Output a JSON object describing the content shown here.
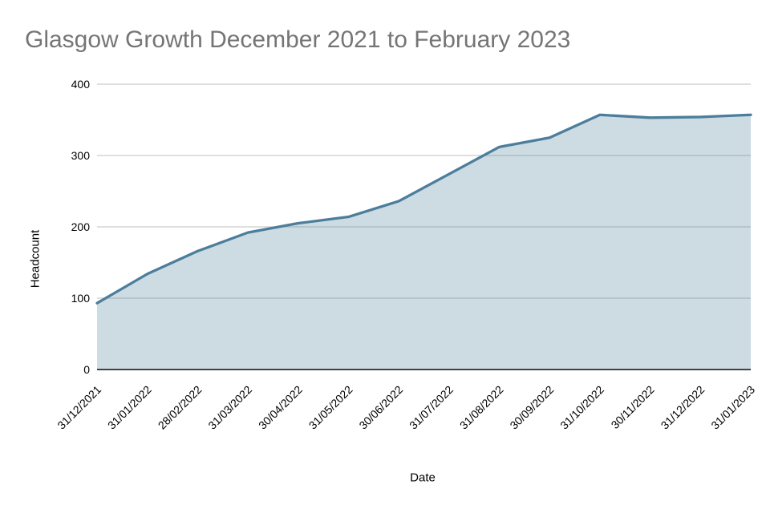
{
  "chart_data": {
    "type": "area",
    "title": "Glasgow Growth December 2021 to February 2023",
    "xlabel": "Date",
    "ylabel": "Headcount",
    "x": [
      "31/12/2021",
      "31/01/2022",
      "28/02/2022",
      "31/03/2022",
      "30/04/2022",
      "31/05/2022",
      "30/06/2022",
      "31/07/2022",
      "31/08/2022",
      "30/09/2022",
      "31/10/2022",
      "30/11/2022",
      "31/12/2022",
      "31/01/2023"
    ],
    "series": [
      {
        "name": "Headcount",
        "values": [
          93,
          134,
          166,
          192,
          205,
          214,
          236,
          274,
          312,
          325,
          357,
          353,
          354,
          357
        ]
      }
    ],
    "ylim": [
      0,
      400
    ],
    "yticks": [
      0,
      100,
      200,
      300,
      400
    ],
    "grid": true,
    "legend": "none",
    "colors": {
      "series_line": "#4c7e9b",
      "fill_opacity": 0.28,
      "gridline": "#cccccc",
      "baseline": "#424242",
      "title_text": "#757575",
      "tick_text": "#000000"
    }
  }
}
